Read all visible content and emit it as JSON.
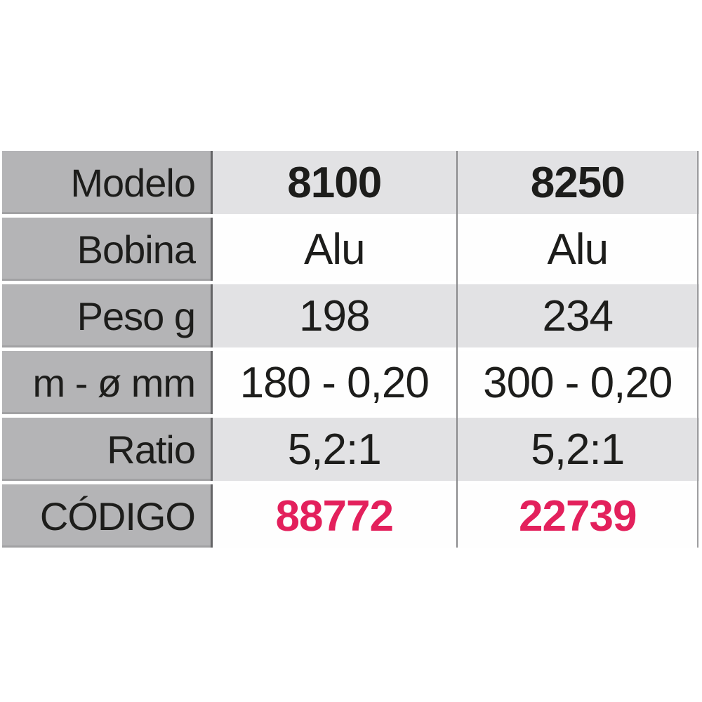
{
  "chart_data": {
    "type": "table",
    "title": "",
    "rows": [
      [
        "Modelo",
        "8100",
        "8250"
      ],
      [
        "Bobina",
        "Alu",
        "Alu"
      ],
      [
        "Peso g",
        "198",
        "234"
      ],
      [
        "m - ø mm",
        "180 - 0,20",
        "300 - 0,20"
      ],
      [
        "Ratio",
        "5,2:1",
        "5,2:1"
      ],
      [
        "CÓDIGO",
        "88772",
        "22739"
      ]
    ]
  },
  "colors": {
    "accent_code": "#e3205c",
    "header_column_bg": "#b4b4b6",
    "band_bg": "#e2e2e4",
    "divider": "#8a8a8c",
    "text": "#1d1d1b"
  }
}
